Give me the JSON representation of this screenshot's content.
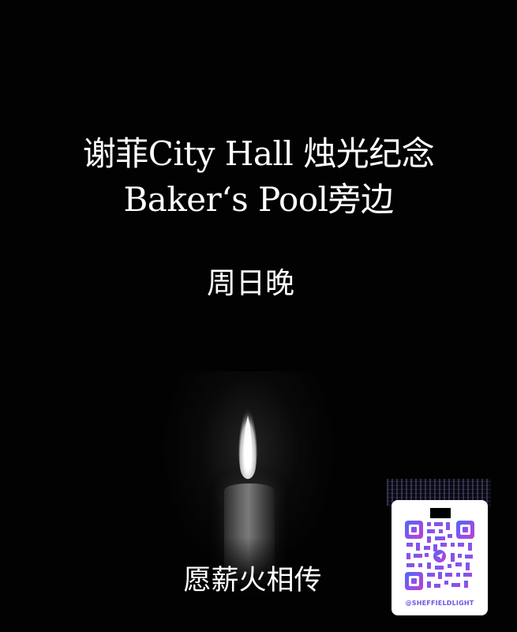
{
  "poster": {
    "title_line_1": "谢菲City Hall 烛光纪念",
    "title_line_2": "Baker‘s Pool旁边",
    "time_text": "周日晚",
    "footer_text": "愿薪火相传"
  },
  "qr": {
    "handle": "@SHEFFIELDLIGHT"
  },
  "colors": {
    "background": "#020202",
    "text": "#ffffff",
    "qr_gradient_start": "#4d67ff",
    "qr_gradient_end": "#c33ed3",
    "qr_handle": "#6d56e2"
  },
  "icons": {
    "candle": "candle-icon",
    "qr": "qr-code-icon",
    "logo": "lock-icon"
  }
}
